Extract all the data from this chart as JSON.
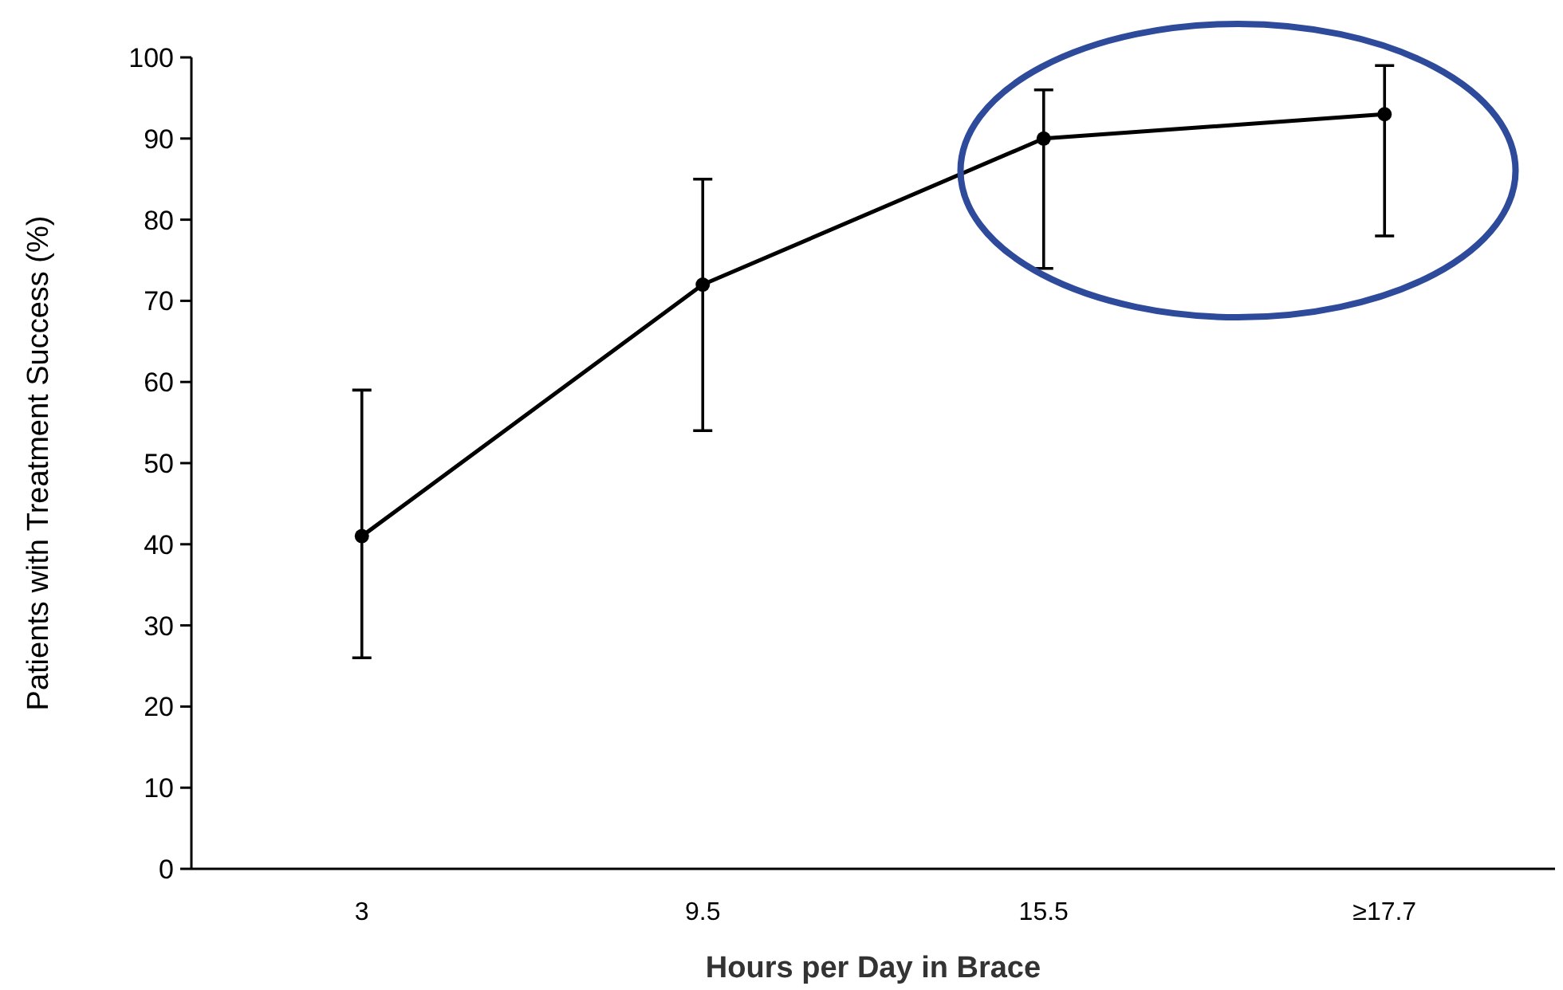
{
  "chart_data": {
    "type": "line",
    "xlabel": "Hours per Day in Brace",
    "ylabel": "Patients with Treatment Success (%)",
    "categories": [
      "3",
      "9.5",
      "15.5",
      "≥17.7"
    ],
    "series": [
      {
        "color": "#000000",
        "values": [
          41,
          72,
          90,
          93
        ],
        "errors": [
          [
            26,
            59
          ],
          [
            54,
            85
          ],
          [
            74,
            96
          ],
          [
            78,
            99
          ]
        ]
      }
    ],
    "ylim": [
      0,
      100
    ],
    "yticks": [
      0,
      10,
      20,
      30,
      40,
      50,
      60,
      70,
      80,
      90,
      100
    ],
    "grid": false,
    "marker": "circle",
    "line_style": "solid"
  }
}
